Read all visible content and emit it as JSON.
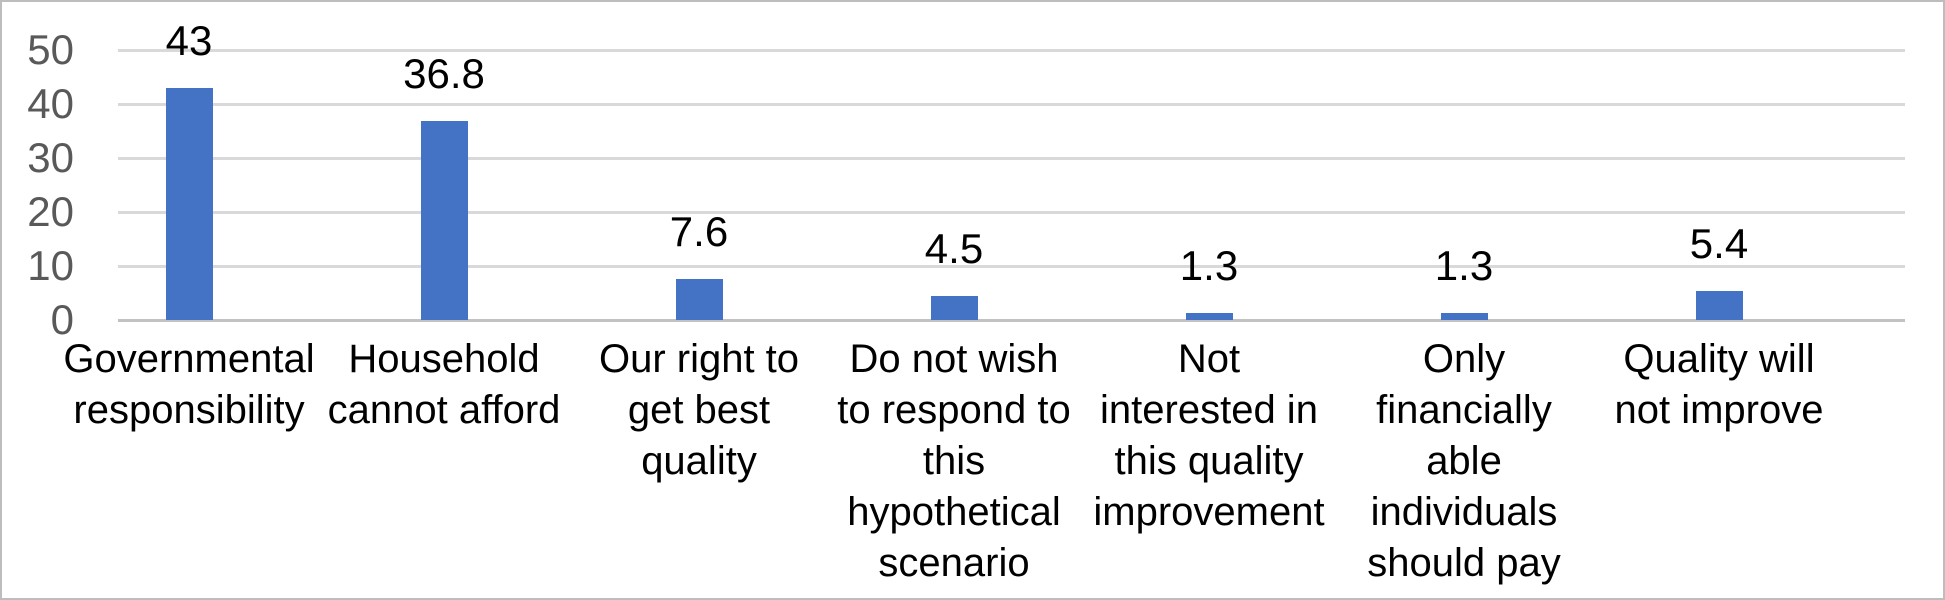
{
  "chart_data": {
    "type": "bar",
    "title": "",
    "xlabel": "",
    "ylabel": "",
    "categories": [
      "Governmental responsibility",
      "Household cannot afford",
      "Our right to get best quality",
      "Do not wish to respond to this hypothetical scenario",
      "Not interested in this quality improvement",
      "Only financially able individuals should pay",
      "Quality will not improve"
    ],
    "category_lines": [
      [
        "Governmental",
        "responsibility"
      ],
      [
        "Household",
        "cannot afford"
      ],
      [
        "Our right to",
        "get best",
        "quality"
      ],
      [
        "Do not wish",
        "to respond to",
        "this",
        "hypothetical",
        "scenario"
      ],
      [
        "Not",
        "interested in",
        "this quality",
        "improvement"
      ],
      [
        "Only",
        "financially",
        "able",
        "individuals",
        "should pay"
      ],
      [
        "Quality will",
        "not improve"
      ]
    ],
    "values": [
      43,
      36.8,
      7.6,
      4.5,
      1.3,
      1.3,
      5.4
    ],
    "data_labels": [
      "43",
      "36.8",
      "7.6",
      "4.5",
      "1.3",
      "1.3",
      "5.4"
    ],
    "y_ticks": [
      0,
      10,
      20,
      30,
      40,
      50
    ],
    "y_tick_labels": [
      "0",
      "10",
      "20",
      "30",
      "40",
      "50"
    ],
    "ylim": [
      0,
      50
    ],
    "grid": true,
    "legend": "none",
    "colors": {
      "bar": "#4472c4",
      "gridline": "#d9d9d9",
      "axis_line": "#c2c2c2",
      "y_tick_text": "#595959",
      "data_label_text": "#000000",
      "category_text": "#000000"
    }
  }
}
